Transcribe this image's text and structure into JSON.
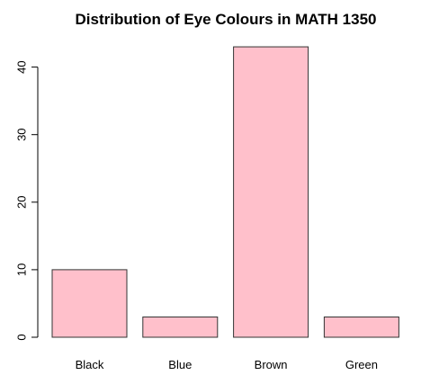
{
  "chart_data": {
    "type": "bar",
    "title": "Distribution of Eye Colours in MATH 1350",
    "xlabel": "",
    "ylabel": "",
    "categories": [
      "Black",
      "Blue",
      "Brown",
      "Green"
    ],
    "values": [
      10,
      3,
      43,
      3
    ],
    "ylim": [
      0,
      43
    ],
    "yticks": [
      0,
      10,
      20,
      30,
      40
    ],
    "bar_color": "#ffc0cb",
    "bar_border_color": "#333333",
    "grid": false,
    "legend": "none"
  }
}
